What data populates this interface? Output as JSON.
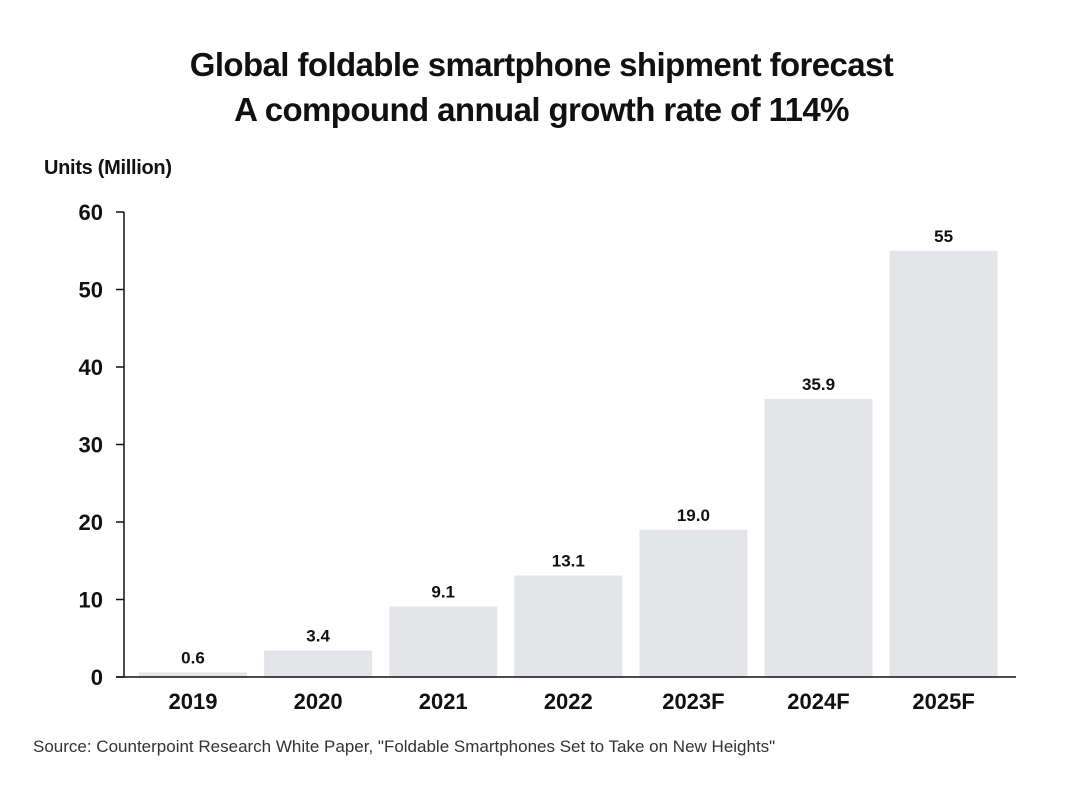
{
  "chart": {
    "title_line1": "Global foldable smartphone shipment forecast",
    "title_line2": "A compound annual growth rate of 114%",
    "source": "Source: Counterpoint Research White Paper, \"Foldable Smartphones Set to Take on New Heights\""
  },
  "chart_data": {
    "type": "bar",
    "title": "Global foldable smartphone shipment forecast",
    "subtitle": "A compound annual growth rate of 114%",
    "xlabel": "",
    "ylabel": "Units (Million)",
    "categories": [
      "2019",
      "2020",
      "2021",
      "2022",
      "2023F",
      "2024F",
      "2025F"
    ],
    "values": [
      0.6,
      3.4,
      9.1,
      13.1,
      19.0,
      35.9,
      55
    ],
    "data_labels": [
      "0.6",
      "3.4",
      "9.1",
      "13.1",
      "19.0",
      "35.9",
      "55"
    ],
    "ylim": [
      0,
      60
    ],
    "yticks": [
      0,
      10,
      20,
      30,
      40,
      50,
      60
    ],
    "grid": false,
    "legend": "none",
    "bar_color": "#e3e5e8",
    "axis_color": "#111111"
  }
}
